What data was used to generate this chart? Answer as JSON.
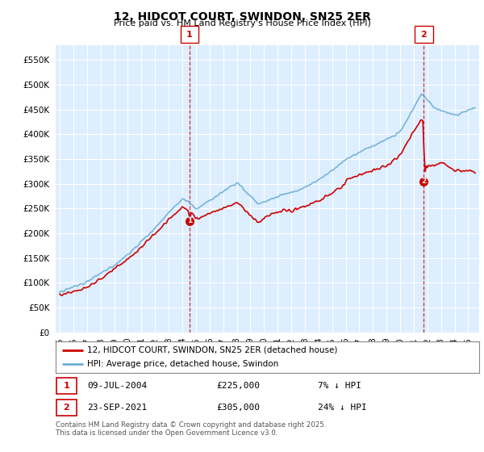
{
  "title": "12, HIDCOT COURT, SWINDON, SN25 2ER",
  "subtitle": "Price paid vs. HM Land Registry's House Price Index (HPI)",
  "ytick_values": [
    0,
    50000,
    100000,
    150000,
    200000,
    250000,
    300000,
    350000,
    400000,
    450000,
    500000,
    550000
  ],
  "ylim": [
    0,
    580000
  ],
  "legend_entries": [
    "12, HIDCOT COURT, SWINDON, SN25 2ER (detached house)",
    "HPI: Average price, detached house, Swindon"
  ],
  "annotation1": {
    "label": "1",
    "date": "09-JUL-2004",
    "price": "£225,000",
    "pct": "7% ↓ HPI"
  },
  "annotation2": {
    "label": "2",
    "date": "23-SEP-2021",
    "price": "£305,000",
    "pct": "24% ↓ HPI"
  },
  "footnote": "Contains HM Land Registry data © Crown copyright and database right 2025.\nThis data is licensed under the Open Government Licence v3.0.",
  "hpi_color": "#6baed6",
  "price_color": "#cc0000",
  "bg_color": "#ddeeff",
  "sale1_x": 2004.53,
  "sale1_y": 225000,
  "sale2_x": 2021.73,
  "sale2_y": 305000,
  "xmin": 1994.7,
  "xmax": 2025.8
}
